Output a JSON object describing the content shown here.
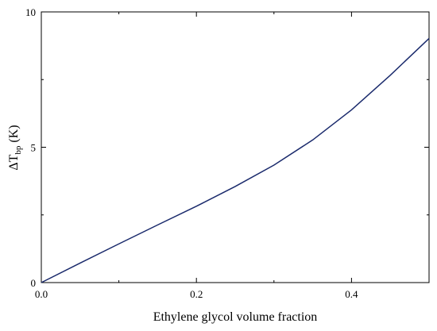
{
  "chart_data": {
    "type": "line",
    "xlabel": "Ethylene glycol volume fraction",
    "ylabel_main": "ΔT",
    "ylabel_sub": "bp",
    "ylabel_unit": " (K)",
    "xlim": [
      0,
      0.5
    ],
    "ylim": [
      0,
      10
    ],
    "x_ticks_major": [
      0.0,
      0.2,
      0.4
    ],
    "x_tick_labels": [
      "0.0",
      "0.2",
      "0.4"
    ],
    "x_ticks_minor": [
      0.1,
      0.3,
      0.5
    ],
    "y_ticks_major": [
      0,
      5,
      10
    ],
    "y_tick_labels": [
      "0",
      "5",
      "10"
    ],
    "y_ticks_minor": [
      2.5,
      7.5
    ],
    "grid": false,
    "series": [
      {
        "color": "#1a2a6c",
        "x": [
          0.0,
          0.05,
          0.1,
          0.15,
          0.2,
          0.25,
          0.3,
          0.35,
          0.4,
          0.45,
          0.5
        ],
        "y": [
          0.0,
          0.72,
          1.43,
          2.13,
          2.82,
          3.55,
          4.34,
          5.27,
          6.38,
          7.66,
          9.02
        ]
      }
    ]
  }
}
